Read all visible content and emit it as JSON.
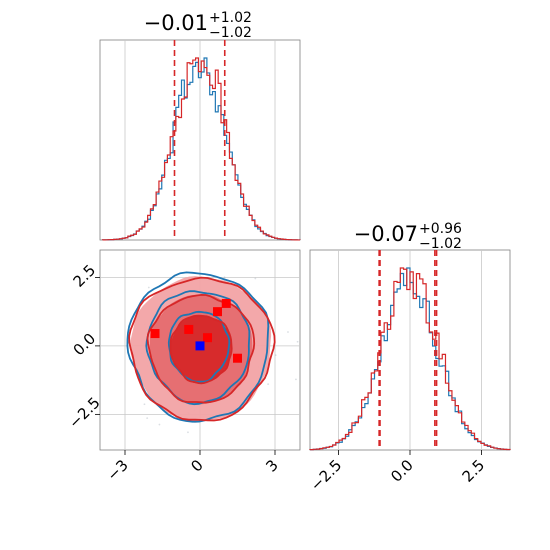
{
  "chart_data": {
    "type": "corner",
    "parameters": [
      {
        "median": "−0.01",
        "plus": "+1.02",
        "minus": "−1.02",
        "xlim": [
          -4,
          4
        ],
        "quantiles": [
          -1.02,
          0.99
        ]
      },
      {
        "median": "−0.07",
        "plus": "+0.96",
        "minus": "−1.02",
        "xlim": [
          -3.5,
          3.5
        ],
        "quantiles": [
          -1.05,
          0.93,
          -1.08,
          0.87
        ]
      }
    ],
    "joint": {
      "xlim": [
        -4,
        4
      ],
      "ylim": [
        -3.8,
        3.5
      ],
      "xticks": [
        -3,
        0,
        3
      ],
      "xtick_labels": [
        "−3",
        "0",
        "3"
      ],
      "yticks": [
        2.5,
        0.0,
        -2.5
      ],
      "ytick_labels": [
        "2.5",
        "0.0",
        "−2.5"
      ],
      "truth_point": {
        "x": 0,
        "y": 0
      },
      "red_markers": [
        {
          "x": -1.8,
          "y": 0.45
        },
        {
          "x": -0.45,
          "y": 0.6
        },
        {
          "x": 0.3,
          "y": 0.3
        },
        {
          "x": 0.7,
          "y": 1.25
        },
        {
          "x": 1.05,
          "y": 1.55
        },
        {
          "x": 1.5,
          "y": -0.45
        }
      ],
      "contour_levels": [
        {
          "rx": 1.2,
          "ry": 1.25
        },
        {
          "rx": 2.05,
          "ry": 2.0
        },
        {
          "rx": 2.8,
          "ry": 2.65
        }
      ]
    },
    "marginal2_xticks": [
      -2.5,
      0.0,
      2.5
    ],
    "marginal2_xtick_labels": [
      "−2.5",
      "0.0",
      "2.5"
    ],
    "series": [
      {
        "color": "#1f77b4"
      },
      {
        "color": "#d62728"
      }
    ],
    "grid": true
  },
  "colors": {
    "blue": "#1f77b4",
    "red": "#d62728",
    "fill_outer": "#f2a3a5",
    "fill_mid": "#e56b6f",
    "fill_inner": "#d62728",
    "grid": "#c8c8c8",
    "truth": "#0000ff",
    "marker": "#ff0000"
  }
}
